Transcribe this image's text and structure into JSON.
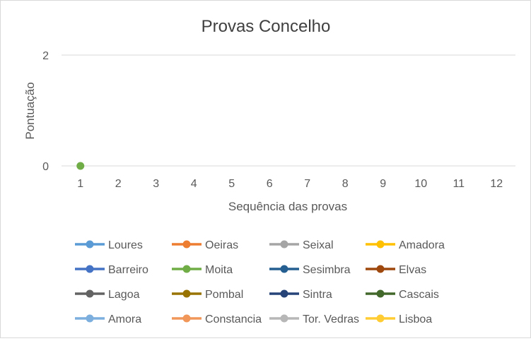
{
  "chart_data": {
    "type": "line",
    "title": "Provas Concelho",
    "xlabel": "Sequência das provas",
    "ylabel": "Pontuação",
    "categories": [
      "1",
      "2",
      "3",
      "4",
      "5",
      "6",
      "7",
      "8",
      "9",
      "10",
      "11",
      "12"
    ],
    "ylim": [
      0,
      2
    ],
    "yticks": [
      "0",
      "2"
    ],
    "grid": true,
    "legend_position": "bottom",
    "series": [
      {
        "name": "Loures",
        "color": "#5b9bd5",
        "values": [
          null,
          null,
          null,
          null,
          null,
          null,
          null,
          null,
          null,
          null,
          null,
          null
        ]
      },
      {
        "name": "Oeiras",
        "color": "#ed7d31",
        "values": [
          null,
          null,
          null,
          null,
          null,
          null,
          null,
          null,
          null,
          null,
          null,
          null
        ]
      },
      {
        "name": "Seixal",
        "color": "#a5a5a5",
        "values": [
          null,
          null,
          null,
          null,
          null,
          null,
          null,
          null,
          null,
          null,
          null,
          null
        ]
      },
      {
        "name": "Amadora",
        "color": "#ffc000",
        "values": [
          null,
          null,
          null,
          null,
          null,
          null,
          null,
          null,
          null,
          null,
          null,
          null
        ]
      },
      {
        "name": "Barreiro",
        "color": "#4472c4",
        "values": [
          null,
          null,
          null,
          null,
          null,
          null,
          null,
          null,
          null,
          null,
          null,
          null
        ]
      },
      {
        "name": "Moita",
        "color": "#70ad47",
        "values": [
          0,
          null,
          null,
          null,
          null,
          null,
          null,
          null,
          null,
          null,
          null,
          null
        ]
      },
      {
        "name": "Sesimbra",
        "color": "#255e91",
        "values": [
          null,
          null,
          null,
          null,
          null,
          null,
          null,
          null,
          null,
          null,
          null,
          null
        ]
      },
      {
        "name": "Elvas",
        "color": "#9e480e",
        "values": [
          null,
          null,
          null,
          null,
          null,
          null,
          null,
          null,
          null,
          null,
          null,
          null
        ]
      },
      {
        "name": "Lagoa",
        "color": "#636363",
        "values": [
          null,
          null,
          null,
          null,
          null,
          null,
          null,
          null,
          null,
          null,
          null,
          null
        ]
      },
      {
        "name": "Pombal",
        "color": "#997300",
        "values": [
          null,
          null,
          null,
          null,
          null,
          null,
          null,
          null,
          null,
          null,
          null,
          null
        ]
      },
      {
        "name": "Sintra",
        "color": "#264478",
        "values": [
          null,
          null,
          null,
          null,
          null,
          null,
          null,
          null,
          null,
          null,
          null,
          null
        ]
      },
      {
        "name": "Cascais",
        "color": "#43682b",
        "values": [
          null,
          null,
          null,
          null,
          null,
          null,
          null,
          null,
          null,
          null,
          null,
          null
        ]
      },
      {
        "name": "Amora",
        "color": "#7cafdd",
        "values": [
          null,
          null,
          null,
          null,
          null,
          null,
          null,
          null,
          null,
          null,
          null,
          null
        ]
      },
      {
        "name": "Constancia",
        "color": "#f1975a",
        "values": [
          null,
          null,
          null,
          null,
          null,
          null,
          null,
          null,
          null,
          null,
          null,
          null
        ]
      },
      {
        "name": "Tor. Vedras",
        "color": "#b7b7b7",
        "values": [
          null,
          null,
          null,
          null,
          null,
          null,
          null,
          null,
          null,
          null,
          null,
          null
        ]
      },
      {
        "name": "Lisboa",
        "color": "#ffcd33",
        "values": [
          null,
          null,
          null,
          null,
          null,
          null,
          null,
          null,
          null,
          null,
          null,
          null
        ]
      }
    ]
  }
}
